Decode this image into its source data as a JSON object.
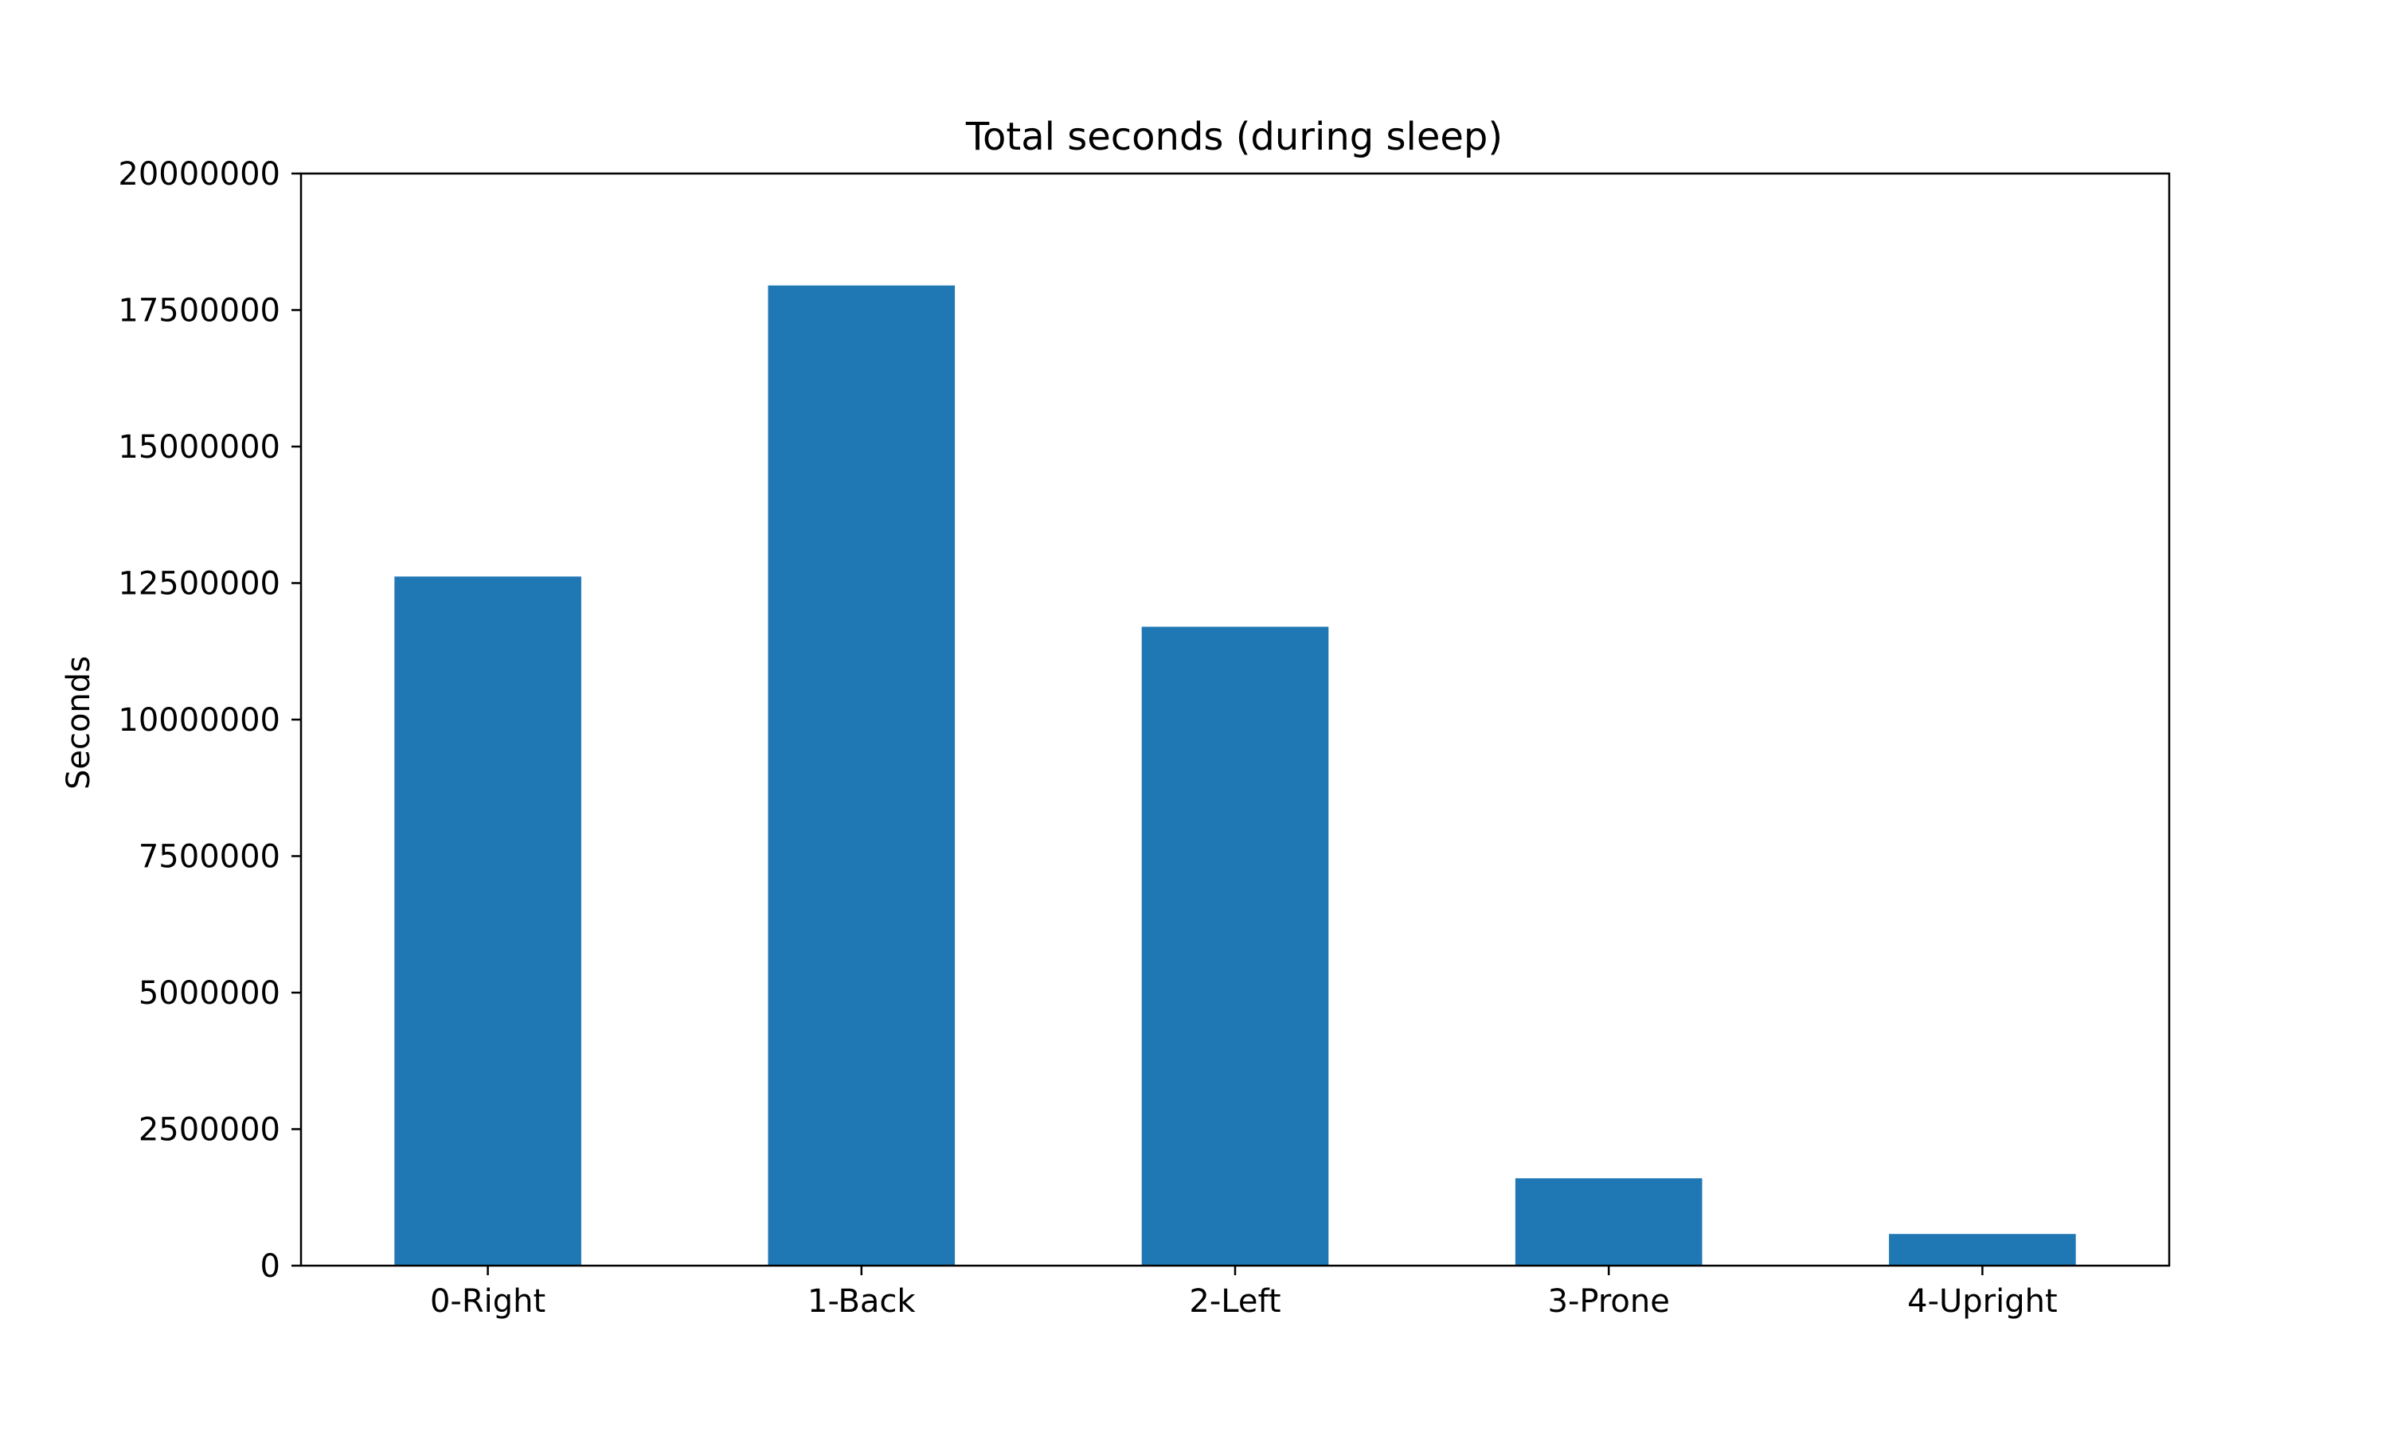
{
  "chart_data": {
    "type": "bar",
    "title": "Total seconds (during sleep)",
    "xlabel": "",
    "ylabel": "Seconds",
    "categories": [
      "0-Right",
      "1-Back",
      "2-Left",
      "3-Prone",
      "4-Upright"
    ],
    "values": [
      12620000,
      17950000,
      11700000,
      1600000,
      580000
    ],
    "ylim": [
      0,
      20000000
    ],
    "yticks": [
      0,
      2500000,
      5000000,
      7500000,
      10000000,
      12500000,
      15000000,
      17500000,
      20000000
    ],
    "ytick_labels": [
      "0",
      "2500000",
      "5000000",
      "7500000",
      "10000000",
      "12500000",
      "15000000",
      "17500000",
      "20000000"
    ],
    "bar_color": "#1f77b4",
    "grid": false,
    "legend": "none"
  }
}
